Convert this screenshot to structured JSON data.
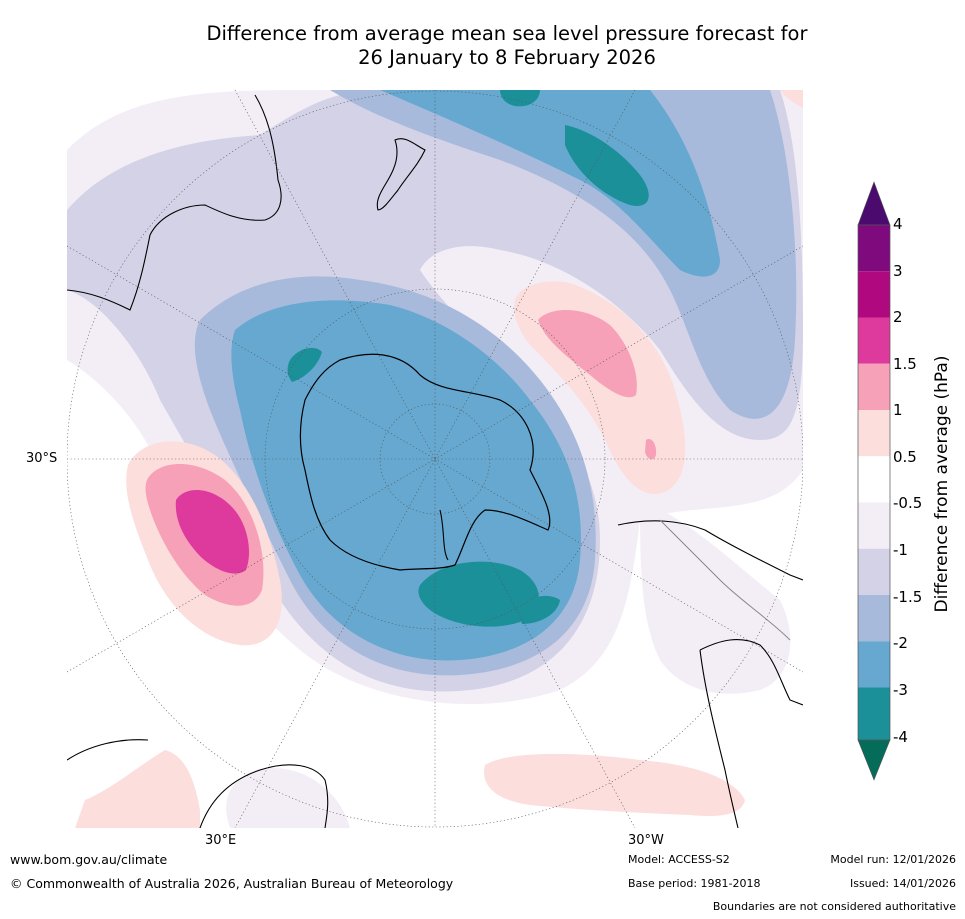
{
  "title": {
    "line1": "Difference from average mean sea level pressure forecast for",
    "line2": "26 January to 8 February 2026"
  },
  "map": {
    "projection": "south polar stereographic",
    "lat_label": "30°S",
    "lon_label_left": "30°E",
    "lon_label_right": "30°W"
  },
  "colorbar": {
    "title": "Difference from average (hPa)",
    "tick_labels": [
      "4",
      "3",
      "2",
      "1.5",
      "1",
      "0.5",
      "-0.5",
      "-1",
      "-1.5",
      "-2",
      "-3",
      "-4"
    ],
    "colors": {
      "above_4": "#4b0a6e",
      "3_to_4": "#7e0a7e",
      "2_to_3": "#b0087e",
      "1.5_to_2": "#de3a9e",
      "1_to_1.5": "#f7a1b9",
      "0.5_to_1": "#fcdedd",
      "neutral": "#ffffff",
      "-1_to_-0.5": "#f3eef6",
      "-1.5_to_-1": "#d4d2e6",
      "-2_to_-1.5": "#a8badb",
      "-3_to_-2": "#66a8cf",
      "-4_to_-3": "#1c9099",
      "below_-4": "#046c59"
    }
  },
  "footer": {
    "url": "www.bom.gov.au/climate",
    "copyright": "© Commonwealth of Australia 2026, Australian Bureau of Meteorology",
    "model": "Model: ACCESS-S2",
    "base_period": "Base period: 1981-2018",
    "model_run": "Model run: 12/01/2026",
    "issued": "Issued: 14/01/2026",
    "disclaimer": "Boundaries are not considered authoritative"
  }
}
